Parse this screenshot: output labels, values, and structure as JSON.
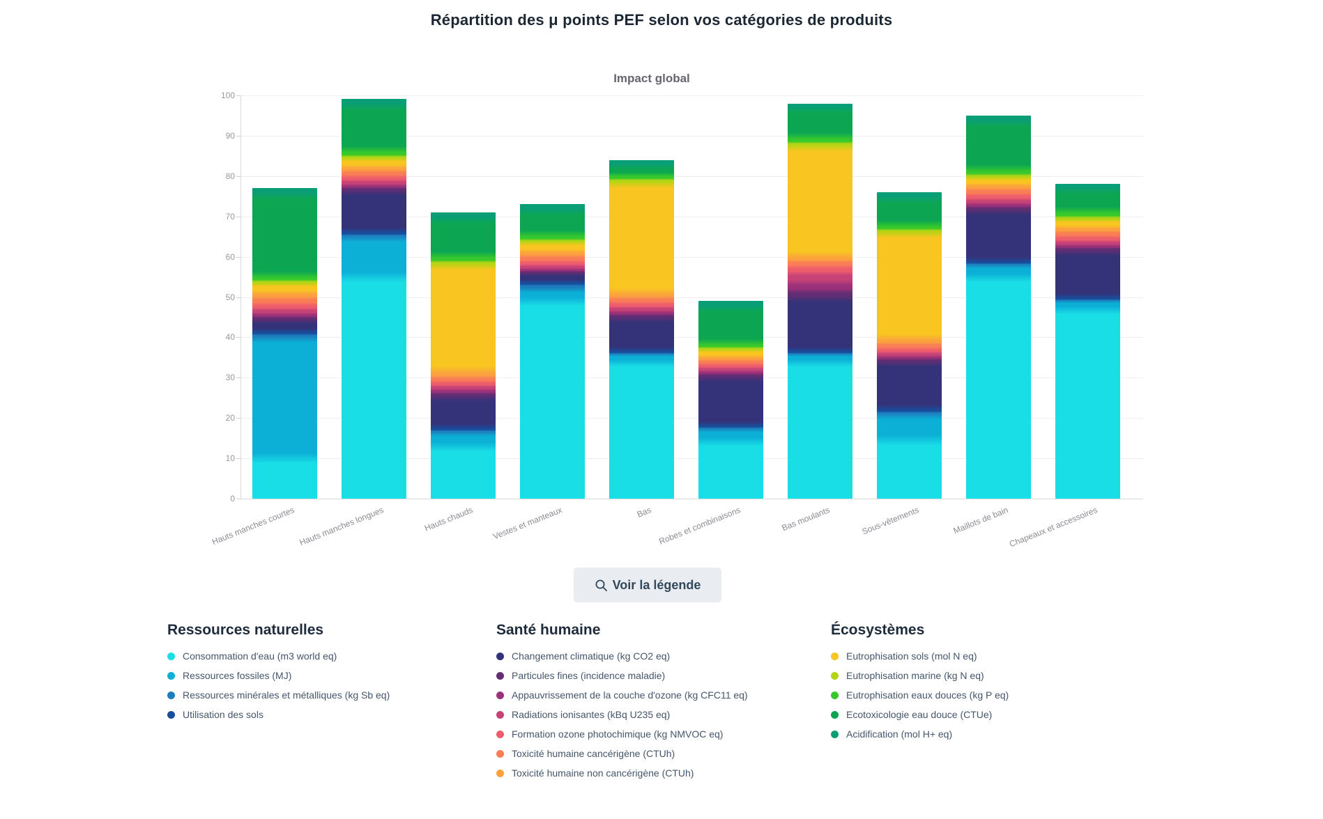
{
  "page_title": "Répartition des μ points PEF selon vos catégories de produits",
  "legend_button": {
    "label": "Voir la légende",
    "icon": "magnifier-icon"
  },
  "colors": {
    "title_text": "#1b2733",
    "subtitle_text": "#65656f",
    "grid": "#ededf2",
    "axis": "#d9d9e0",
    "tick_text": "#98989f",
    "xlabel_text": "#8b8b95",
    "button_bg": "#e9edf1",
    "button_text": "#33475b",
    "legend_header_text": "#1e2b3a",
    "legend_item_text": "#44566b"
  },
  "chart_data": {
    "type": "bar",
    "stacked": true,
    "title": "Répartition des μ points PEF selon vos catégories de produits",
    "subtitle": "Impact global",
    "xlabel": "",
    "ylabel": "",
    "ylim": [
      0,
      100
    ],
    "ytick_step": 10,
    "grid": true,
    "legend_position": "bottom",
    "categories": [
      "Hauts manches courtes",
      "Hauts manches longues",
      "Hauts chauds",
      "Vestes et manteaux",
      "Bas",
      "Robes et combinaisons",
      "Bas moulants",
      "Sous-vêtements",
      "Maillots de bain",
      "Chapeaux et accessoires"
    ],
    "totals": [
      77,
      99.2,
      71,
      73,
      84,
      49,
      98,
      76,
      95,
      78
    ],
    "series": [
      {
        "name": "Consommation d'eau (m3 world eq)",
        "color": "#1adee6",
        "values": [
          10,
          55,
          13,
          49,
          34,
          14.3,
          34,
          14.5,
          55,
          47
        ]
      },
      {
        "name": "Ressources fossiles (MJ)",
        "color": "#0cafd6",
        "values": [
          30,
          10,
          3.5,
          3,
          1.8,
          3,
          1.8,
          6.5,
          3,
          2
        ]
      },
      {
        "name": "Ressources minérales et métalliques (kg Sb eq)",
        "color": "#1d7ebd",
        "values": [
          0.7,
          0.5,
          0.4,
          1,
          0.3,
          0.3,
          0.3,
          0.5,
          0.3,
          0.3
        ]
      },
      {
        "name": "Utilisation des sols",
        "color": "#174f9e",
        "values": [
          0.6,
          0.5,
          0.4,
          0.6,
          0.3,
          0.3,
          0.3,
          0.5,
          0.3,
          0.3
        ]
      },
      {
        "name": "Changement climatique (kg CO2 eq)",
        "color": "#343379",
        "values": [
          3,
          10.5,
          8.2,
          2.2,
          8.6,
          12.3,
          13.6,
          12,
          13,
          11.9
        ]
      },
      {
        "name": "Particules fines (incidence maladie)",
        "color": "#632d73",
        "values": [
          0.7,
          0.6,
          0.6,
          0.5,
          0.6,
          0.6,
          1.5,
          0.6,
          0.7,
          0.6
        ]
      },
      {
        "name": "Appauvrissement de la couche d'ozone (kg CFC11 eq)",
        "color": "#9a3179",
        "values": [
          0.8,
          0.7,
          0.9,
          0.6,
          0.8,
          0.7,
          2.0,
          0.7,
          0.8,
          0.7
        ]
      },
      {
        "name": "Radiations ionisantes (kBq U235 eq)",
        "color": "#c64277",
        "values": [
          1.2,
          1.1,
          1.0,
          0.9,
          1.1,
          0.9,
          2.5,
          0.9,
          1.1,
          1.0
        ]
      },
      {
        "name": "Formation ozone photochimique (kg NMVOC eq)",
        "color": "#ee5d6c",
        "values": [
          1.2,
          1.1,
          1.0,
          1.0,
          1.1,
          0.9,
          1.6,
          1.0,
          1.2,
          1.1
        ]
      },
      {
        "name": "Toxicité humaine cancérigène (CTUh)",
        "color": "#f97e56",
        "values": [
          1.6,
          1.3,
          1.2,
          1.4,
          1.3,
          1.0,
          1.4,
          1.3,
          1.4,
          1.3
        ]
      },
      {
        "name": "Toxicité humaine non cancérigène (CTUh)",
        "color": "#fba23e",
        "values": [
          1.2,
          1.0,
          1.3,
          1.0,
          1.0,
          0.8,
          1.0,
          1.0,
          1.0,
          1.0
        ]
      },
      {
        "name": "Eutrophisation sols (mol N eq)",
        "color": "#f9c521",
        "values": [
          2.2,
          2.0,
          26.5,
          2.2,
          27.5,
          1.7,
          27.5,
          26.5,
          1.7,
          1.8
        ]
      },
      {
        "name": "Eutrophisation marine (kg N eq)",
        "color": "#b5d414",
        "values": [
          0.8,
          0.7,
          0.8,
          0.7,
          0.8,
          0.6,
          0.8,
          0.7,
          0.8,
          0.8
        ]
      },
      {
        "name": "Eutrophisation eaux douces (kg P eq)",
        "color": "#37c92b",
        "values": [
          1.0,
          1.2,
          1.2,
          1.1,
          1.1,
          0.9,
          1.2,
          1.0,
          1.2,
          1.2
        ]
      },
      {
        "name": "Ecotoxicologie eau douce (CTUe)",
        "color": "#0ca653",
        "values": [
          20.5,
          11.5,
          9.5,
          6.3,
          2.2,
          9.2,
          7.5,
          6.8,
          12.0,
          5.8
        ]
      },
      {
        "name": "Acidification (mol H+ eq)",
        "color": "#0a9e76",
        "values": [
          1.5,
          1.5,
          1.5,
          1.5,
          1.5,
          1.5,
          1.0,
          1.5,
          1.5,
          1.2
        ]
      }
    ],
    "legend_groups": [
      {
        "title": "Ressources naturelles",
        "series_indexes": [
          0,
          1,
          2,
          3
        ]
      },
      {
        "title": "Santé humaine",
        "series_indexes": [
          4,
          5,
          6,
          7,
          8,
          9,
          10
        ]
      },
      {
        "title": "Écosystèmes",
        "series_indexes": [
          11,
          12,
          13,
          14,
          15
        ]
      }
    ]
  }
}
